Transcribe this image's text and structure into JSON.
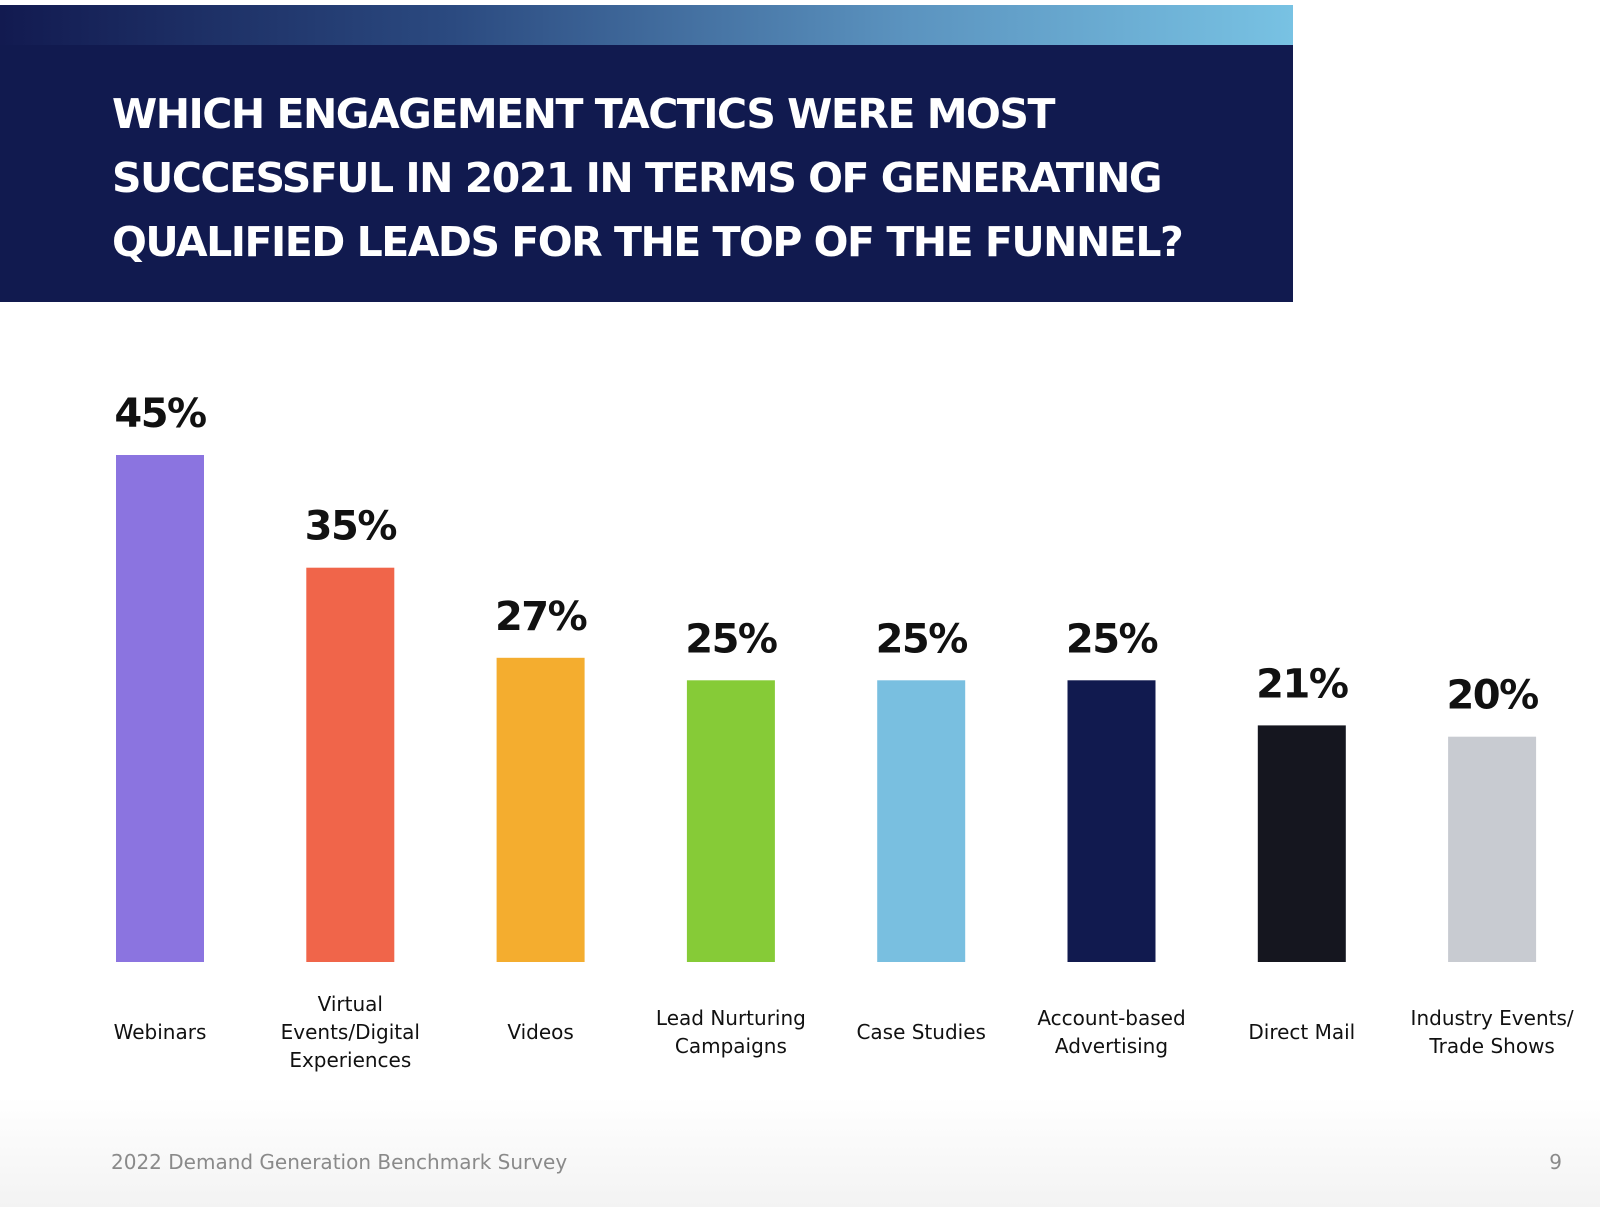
{
  "chart_data": {
    "type": "bar",
    "title": "WHICH ENGAGEMENT TACTICS WERE MOST SUCCESSFUL IN 2021 IN TERMS OF GENERATING QUALIFIED LEADS FOR THE TOP OF THE FUNNEL?",
    "categories": [
      "Webinars",
      "Virtual Events/Digital Experiences",
      "Videos",
      "Lead Nurturing Campaigns",
      "Case Studies",
      "Account-based Advertising",
      "Direct Mail",
      "Industry Events/ Trade Shows"
    ],
    "category_lines": [
      [
        "Webinars"
      ],
      [
        "Virtual",
        "Events/Digital",
        "Experiences"
      ],
      [
        "Videos"
      ],
      [
        "Lead Nurturing",
        "Campaigns"
      ],
      [
        "Case Studies"
      ],
      [
        "Account-based",
        "Advertising"
      ],
      [
        "Direct Mail"
      ],
      [
        "Industry Events/",
        "Trade Shows"
      ]
    ],
    "values": [
      45,
      35,
      27,
      25,
      25,
      25,
      21,
      20
    ],
    "value_labels": [
      "45%",
      "35%",
      "27%",
      "25%",
      "25%",
      "25%",
      "21%",
      "20%"
    ],
    "colors": [
      "#8b74e0",
      "#f0654a",
      "#f4ad2f",
      "#86cb37",
      "#79bfe0",
      "#111a4f",
      "#15161f",
      "#c8cbd1"
    ],
    "ylim": [
      0,
      45
    ],
    "grid": false,
    "legend": "none"
  },
  "footer": {
    "source": "2022 Demand Generation Benchmark Survey",
    "page_number": "9"
  },
  "colors": {
    "header_background": "#111a4f",
    "header_gradient": [
      "#121a50",
      "#78c2e3"
    ],
    "title_text": "#ffffff",
    "footer_text": "#8a8a8a"
  }
}
